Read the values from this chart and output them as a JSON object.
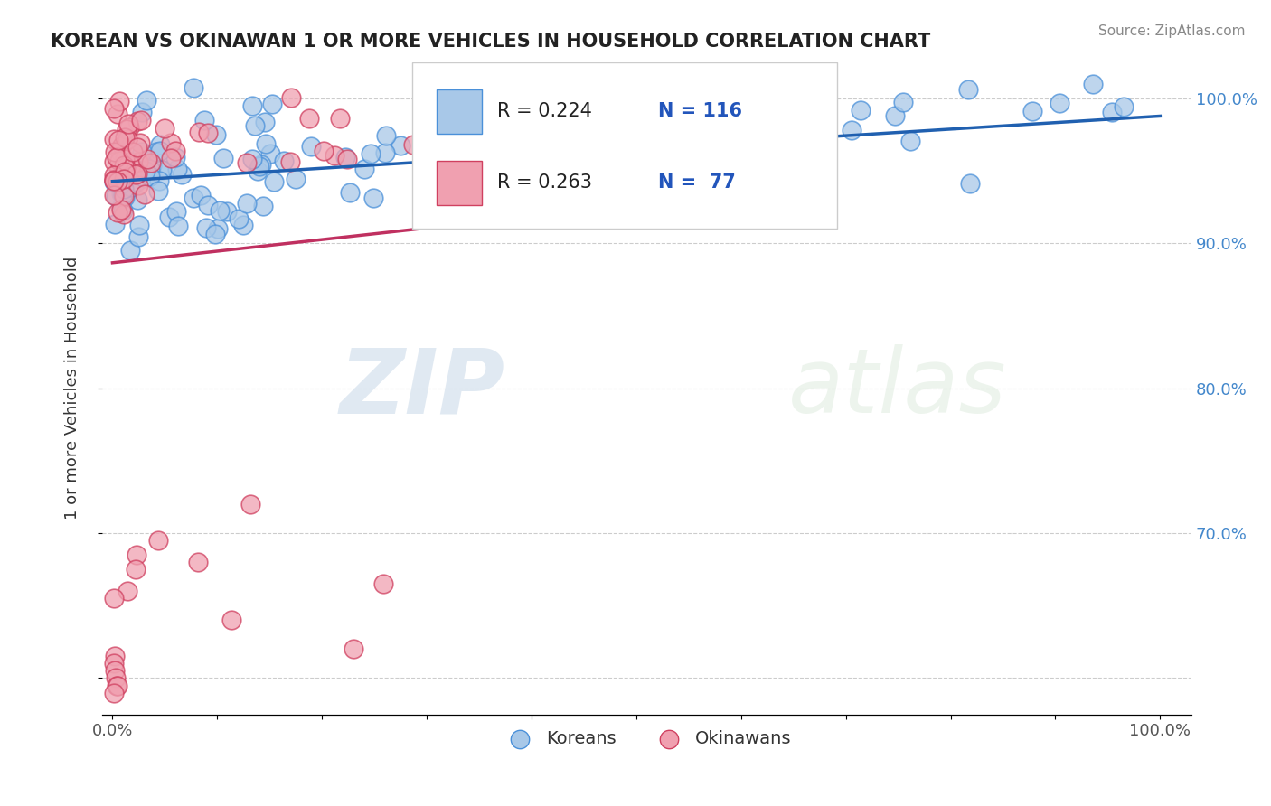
{
  "title": "KOREAN VS OKINAWAN 1 OR MORE VEHICLES IN HOUSEHOLD CORRELATION CHART",
  "source": "Source: ZipAtlas.com",
  "ylabel": "1 or more Vehicles in Household",
  "korean_color": "#a8c8e8",
  "korean_edge_color": "#4a90d9",
  "korean_line_color": "#2060b0",
  "okinawan_color": "#f0a0b0",
  "okinawan_edge_color": "#d04060",
  "okinawan_line_color": "#c03060",
  "watermark_zip": "ZIP",
  "watermark_atlas": "atlas",
  "grid_color": "#cccccc",
  "background_color": "#ffffff",
  "legend_korean_r": "R = 0.224",
  "legend_korean_n": "N = 116",
  "legend_okinawan_r": "R = 0.263",
  "legend_okinawan_n": "N =  77"
}
